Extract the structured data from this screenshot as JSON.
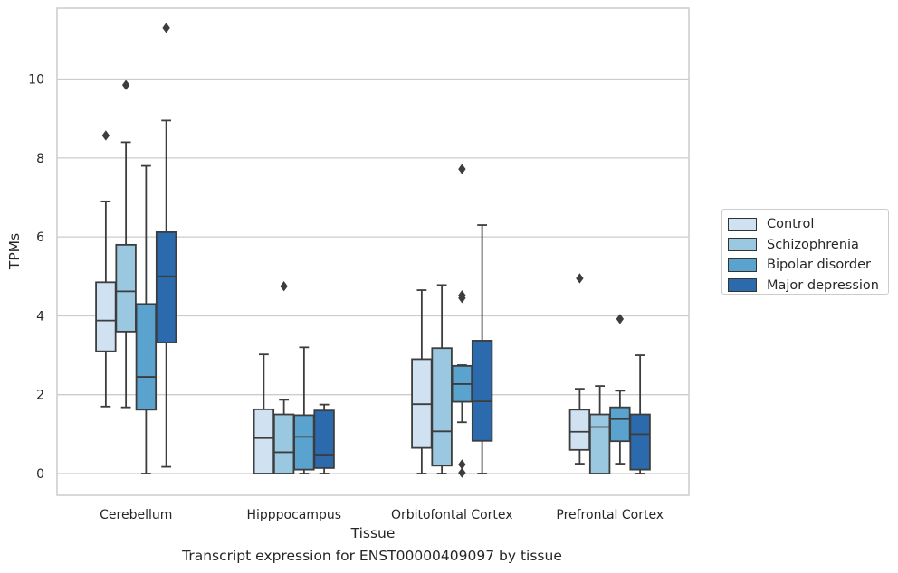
{
  "caption": "Transcript expression for ENST00000409097 by tissue",
  "chart_data": {
    "type": "box",
    "title": "",
    "xlabel": "Tissue",
    "ylabel": "TPMs",
    "ylim": [
      -0.55,
      11.8
    ],
    "yticks": [
      0,
      2,
      4,
      6,
      8,
      10
    ],
    "grid": "horizontal",
    "legend_position": "right",
    "categories": [
      "Cerebellum",
      "Hipppocampus",
      "Orbitofontal Cortex",
      "Prefrontal Cortex"
    ],
    "series": [
      {
        "name": "Control",
        "color": "#d0e1f2",
        "boxes": [
          {
            "whislo": 1.7,
            "q1": 3.1,
            "med": 3.88,
            "q3": 4.85,
            "whishi": 6.9,
            "fliers": [
              8.57
            ]
          },
          {
            "whislo": 0.0,
            "q1": 0.0,
            "med": 0.9,
            "q3": 1.63,
            "whishi": 3.02,
            "fliers": []
          },
          {
            "whislo": 0.0,
            "q1": 0.65,
            "med": 1.76,
            "q3": 2.9,
            "whishi": 4.65,
            "fliers": []
          },
          {
            "whislo": 0.25,
            "q1": 0.6,
            "med": 1.06,
            "q3": 1.62,
            "whishi": 2.15,
            "fliers": [
              4.95
            ]
          }
        ]
      },
      {
        "name": "Schizophrenia",
        "color": "#9ac8e0",
        "boxes": [
          {
            "whislo": 1.68,
            "q1": 3.6,
            "med": 4.62,
            "q3": 5.8,
            "whishi": 8.4,
            "fliers": [
              9.85
            ]
          },
          {
            "whislo": 0.0,
            "q1": 0.0,
            "med": 0.54,
            "q3": 1.5,
            "whishi": 1.87,
            "fliers": [
              4.75
            ]
          },
          {
            "whislo": 0.0,
            "q1": 0.2,
            "med": 1.07,
            "q3": 3.18,
            "whishi": 4.78,
            "fliers": []
          },
          {
            "whislo": 0.0,
            "q1": 0.0,
            "med": 1.18,
            "q3": 1.5,
            "whishi": 2.22,
            "fliers": []
          }
        ]
      },
      {
        "name": "Bipolar disorder",
        "color": "#5ba3cf",
        "boxes": [
          {
            "whislo": 0.0,
            "q1": 1.62,
            "med": 2.45,
            "q3": 4.3,
            "whishi": 7.8,
            "fliers": []
          },
          {
            "whislo": 0.0,
            "q1": 0.1,
            "med": 0.93,
            "q3": 1.48,
            "whishi": 3.2,
            "fliers": []
          },
          {
            "whislo": 1.3,
            "q1": 1.82,
            "med": 2.27,
            "q3": 2.73,
            "whishi": 2.75,
            "fliers": [
              7.72,
              4.52,
              4.45,
              0.23,
              0.02
            ]
          },
          {
            "whislo": 0.25,
            "q1": 0.82,
            "med": 1.38,
            "q3": 1.68,
            "whishi": 2.1,
            "fliers": [
              3.92
            ]
          }
        ]
      },
      {
        "name": "Major depression",
        "color": "#2b6aad",
        "boxes": [
          {
            "whislo": 0.17,
            "q1": 3.32,
            "med": 5.0,
            "q3": 6.12,
            "whishi": 8.95,
            "fliers": [
              11.3
            ]
          },
          {
            "whislo": 0.0,
            "q1": 0.14,
            "med": 0.48,
            "q3": 1.6,
            "whishi": 1.75,
            "fliers": []
          },
          {
            "whislo": 0.0,
            "q1": 0.83,
            "med": 1.83,
            "q3": 3.37,
            "whishi": 6.3,
            "fliers": []
          },
          {
            "whislo": 0.0,
            "q1": 0.1,
            "med": 1.0,
            "q3": 1.5,
            "whishi": 3.0,
            "fliers": []
          }
        ]
      }
    ]
  }
}
